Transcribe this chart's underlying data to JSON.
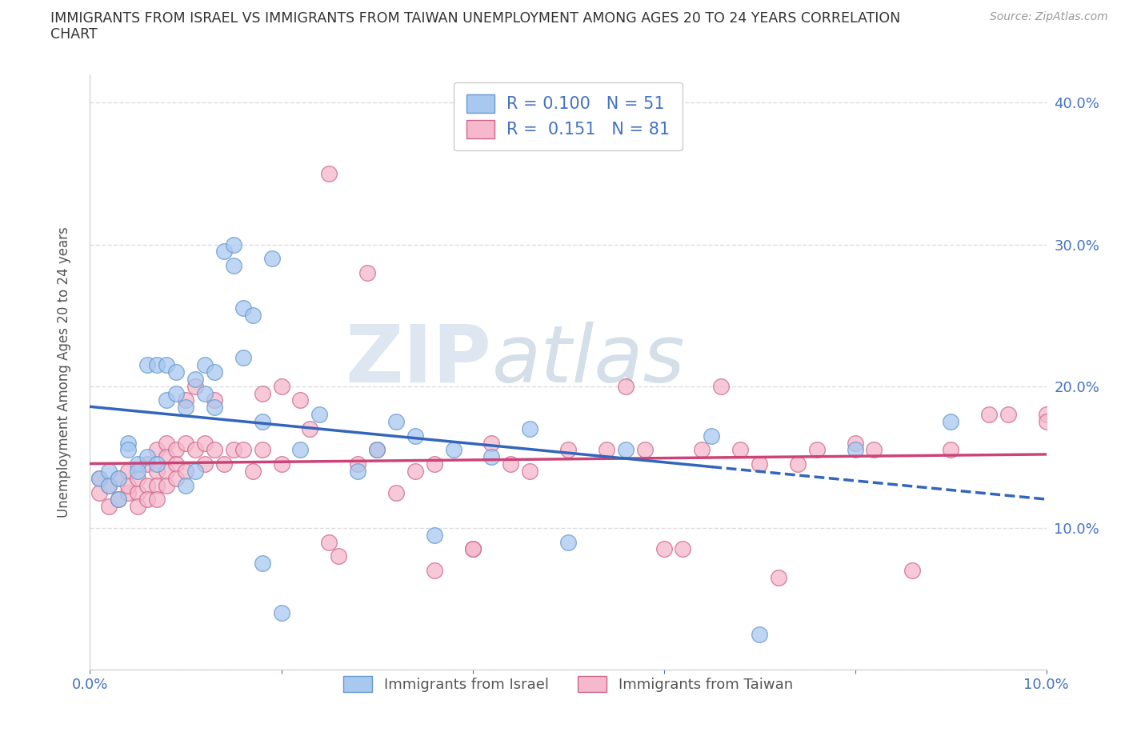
{
  "title_line1": "IMMIGRANTS FROM ISRAEL VS IMMIGRANTS FROM TAIWAN UNEMPLOYMENT AMONG AGES 20 TO 24 YEARS CORRELATION",
  "title_line2": "CHART",
  "source": "Source: ZipAtlas.com",
  "ylabel": "Unemployment Among Ages 20 to 24 years",
  "watermark_zip": "ZIP",
  "watermark_atlas": "atlas",
  "xlim": [
    0.0,
    0.1
  ],
  "ylim": [
    0.0,
    0.42
  ],
  "israel_color": "#a8c8f0",
  "taiwan_color": "#f5b8cc",
  "israel_edge_color": "#6699cc",
  "taiwan_edge_color": "#cc6688",
  "israel_line_color": "#3366bb",
  "taiwan_line_color": "#cc4477",
  "R_israel": 0.1,
  "N_israel": 51,
  "R_taiwan": 0.151,
  "N_taiwan": 81,
  "israel_scatter": [
    [
      0.001,
      0.135
    ],
    [
      0.002,
      0.14
    ],
    [
      0.002,
      0.13
    ],
    [
      0.003,
      0.12
    ],
    [
      0.003,
      0.135
    ],
    [
      0.004,
      0.16
    ],
    [
      0.004,
      0.155
    ],
    [
      0.005,
      0.145
    ],
    [
      0.005,
      0.14
    ],
    [
      0.006,
      0.15
    ],
    [
      0.006,
      0.215
    ],
    [
      0.007,
      0.145
    ],
    [
      0.007,
      0.215
    ],
    [
      0.008,
      0.215
    ],
    [
      0.008,
      0.19
    ],
    [
      0.009,
      0.21
    ],
    [
      0.009,
      0.195
    ],
    [
      0.01,
      0.185
    ],
    [
      0.01,
      0.13
    ],
    [
      0.011,
      0.205
    ],
    [
      0.011,
      0.14
    ],
    [
      0.012,
      0.195
    ],
    [
      0.012,
      0.215
    ],
    [
      0.013,
      0.185
    ],
    [
      0.013,
      0.21
    ],
    [
      0.014,
      0.295
    ],
    [
      0.015,
      0.3
    ],
    [
      0.015,
      0.285
    ],
    [
      0.016,
      0.255
    ],
    [
      0.016,
      0.22
    ],
    [
      0.017,
      0.25
    ],
    [
      0.018,
      0.175
    ],
    [
      0.018,
      0.075
    ],
    [
      0.019,
      0.29
    ],
    [
      0.02,
      0.04
    ],
    [
      0.022,
      0.155
    ],
    [
      0.024,
      0.18
    ],
    [
      0.028,
      0.14
    ],
    [
      0.03,
      0.155
    ],
    [
      0.032,
      0.175
    ],
    [
      0.034,
      0.165
    ],
    [
      0.036,
      0.095
    ],
    [
      0.038,
      0.155
    ],
    [
      0.042,
      0.15
    ],
    [
      0.046,
      0.17
    ],
    [
      0.05,
      0.09
    ],
    [
      0.056,
      0.155
    ],
    [
      0.065,
      0.165
    ],
    [
      0.07,
      0.025
    ],
    [
      0.08,
      0.155
    ],
    [
      0.09,
      0.175
    ]
  ],
  "taiwan_scatter": [
    [
      0.001,
      0.135
    ],
    [
      0.001,
      0.125
    ],
    [
      0.002,
      0.115
    ],
    [
      0.002,
      0.13
    ],
    [
      0.003,
      0.12
    ],
    [
      0.003,
      0.135
    ],
    [
      0.004,
      0.125
    ],
    [
      0.004,
      0.14
    ],
    [
      0.004,
      0.13
    ],
    [
      0.005,
      0.125
    ],
    [
      0.005,
      0.135
    ],
    [
      0.005,
      0.115
    ],
    [
      0.006,
      0.145
    ],
    [
      0.006,
      0.13
    ],
    [
      0.006,
      0.12
    ],
    [
      0.007,
      0.155
    ],
    [
      0.007,
      0.14
    ],
    [
      0.007,
      0.13
    ],
    [
      0.007,
      0.12
    ],
    [
      0.008,
      0.16
    ],
    [
      0.008,
      0.15
    ],
    [
      0.008,
      0.14
    ],
    [
      0.008,
      0.13
    ],
    [
      0.009,
      0.155
    ],
    [
      0.009,
      0.145
    ],
    [
      0.009,
      0.135
    ],
    [
      0.01,
      0.14
    ],
    [
      0.01,
      0.16
    ],
    [
      0.01,
      0.19
    ],
    [
      0.011,
      0.155
    ],
    [
      0.011,
      0.2
    ],
    [
      0.012,
      0.145
    ],
    [
      0.012,
      0.16
    ],
    [
      0.013,
      0.155
    ],
    [
      0.013,
      0.19
    ],
    [
      0.014,
      0.145
    ],
    [
      0.015,
      0.155
    ],
    [
      0.016,
      0.155
    ],
    [
      0.017,
      0.14
    ],
    [
      0.018,
      0.155
    ],
    [
      0.018,
      0.195
    ],
    [
      0.02,
      0.145
    ],
    [
      0.02,
      0.2
    ],
    [
      0.022,
      0.19
    ],
    [
      0.023,
      0.17
    ],
    [
      0.025,
      0.09
    ],
    [
      0.025,
      0.35
    ],
    [
      0.026,
      0.08
    ],
    [
      0.028,
      0.145
    ],
    [
      0.029,
      0.28
    ],
    [
      0.03,
      0.155
    ],
    [
      0.032,
      0.125
    ],
    [
      0.034,
      0.14
    ],
    [
      0.036,
      0.07
    ],
    [
      0.036,
      0.145
    ],
    [
      0.04,
      0.085
    ],
    [
      0.04,
      0.085
    ],
    [
      0.042,
      0.16
    ],
    [
      0.044,
      0.145
    ],
    [
      0.046,
      0.14
    ],
    [
      0.05,
      0.155
    ],
    [
      0.054,
      0.155
    ],
    [
      0.056,
      0.2
    ],
    [
      0.058,
      0.155
    ],
    [
      0.06,
      0.085
    ],
    [
      0.062,
      0.085
    ],
    [
      0.064,
      0.155
    ],
    [
      0.066,
      0.2
    ],
    [
      0.068,
      0.155
    ],
    [
      0.07,
      0.145
    ],
    [
      0.072,
      0.065
    ],
    [
      0.074,
      0.145
    ],
    [
      0.076,
      0.155
    ],
    [
      0.08,
      0.16
    ],
    [
      0.082,
      0.155
    ],
    [
      0.086,
      0.07
    ],
    [
      0.09,
      0.155
    ],
    [
      0.094,
      0.18
    ],
    [
      0.096,
      0.18
    ],
    [
      0.1,
      0.18
    ],
    [
      0.1,
      0.175
    ]
  ],
  "legend_israel_label": "Immigrants from Israel",
  "legend_taiwan_label": "Immigrants from Taiwan",
  "background_color": "#ffffff",
  "grid_color": "#dddddd"
}
